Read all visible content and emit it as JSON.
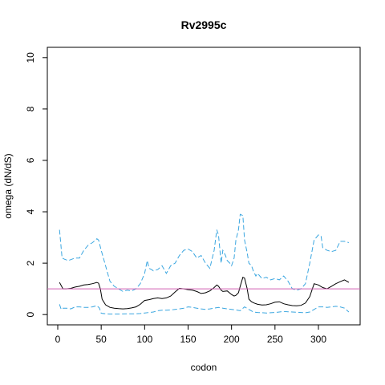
{
  "chart_data": {
    "type": "line",
    "title": "Rv2995c",
    "xlabel": "codon",
    "ylabel": "omega (dN/dS)",
    "xlim": [
      -12,
      348
    ],
    "ylim": [
      -0.4,
      10.4
    ],
    "xticks": [
      0,
      50,
      100,
      150,
      200,
      250,
      300
    ],
    "yticks": [
      0,
      2,
      4,
      6,
      8,
      10
    ],
    "grid": false,
    "reference_line": {
      "y": 1,
      "color": "#d05eb0"
    },
    "series": [
      {
        "role": "omega",
        "color": "#000000",
        "dash": "solid",
        "x": [
          2,
          6,
          10,
          15,
          20,
          25,
          30,
          35,
          40,
          45,
          47,
          49,
          51,
          55,
          60,
          65,
          70,
          75,
          80,
          85,
          90,
          95,
          100,
          105,
          110,
          115,
          120,
          125,
          130,
          135,
          140,
          145,
          150,
          155,
          160,
          165,
          170,
          175,
          180,
          183,
          185,
          188,
          190,
          195,
          200,
          203,
          205,
          208,
          210,
          213,
          215,
          218,
          220,
          223,
          226,
          230,
          235,
          240,
          245,
          250,
          255,
          260,
          265,
          270,
          275,
          280,
          285,
          290,
          295,
          300,
          305,
          310,
          315,
          320,
          325,
          330,
          335
        ],
        "y": [
          1.25,
          1.0,
          1.0,
          1.02,
          1.07,
          1.1,
          1.15,
          1.17,
          1.2,
          1.25,
          1.22,
          1.0,
          0.6,
          0.38,
          0.28,
          0.25,
          0.23,
          0.22,
          0.23,
          0.26,
          0.3,
          0.4,
          0.55,
          0.58,
          0.62,
          0.65,
          0.62,
          0.65,
          0.72,
          0.88,
          1.02,
          1.0,
          0.97,
          0.95,
          0.9,
          0.82,
          0.85,
          0.92,
          1.05,
          1.15,
          1.1,
          0.95,
          0.9,
          0.92,
          0.78,
          0.72,
          0.75,
          0.85,
          1.1,
          1.45,
          1.42,
          1.0,
          0.6,
          0.5,
          0.45,
          0.4,
          0.37,
          0.38,
          0.42,
          0.48,
          0.5,
          0.42,
          0.38,
          0.35,
          0.34,
          0.36,
          0.45,
          0.7,
          1.2,
          1.15,
          1.05,
          1.0,
          1.1,
          1.2,
          1.28,
          1.35,
          1.25
        ]
      },
      {
        "role": "upper bound",
        "color": "#3aa6e0",
        "dash": "dashed",
        "x": [
          2,
          5,
          8,
          12,
          16,
          20,
          25,
          30,
          35,
          40,
          45,
          47,
          50,
          55,
          60,
          65,
          70,
          75,
          80,
          85,
          90,
          95,
          100,
          103,
          105,
          108,
          110,
          115,
          120,
          125,
          130,
          135,
          140,
          145,
          150,
          155,
          160,
          165,
          170,
          175,
          180,
          183,
          185,
          188,
          190,
          193,
          195,
          198,
          200,
          203,
          205,
          208,
          210,
          213,
          215,
          218,
          220,
          223,
          225,
          228,
          230,
          235,
          240,
          245,
          250,
          255,
          260,
          265,
          270,
          275,
          280,
          285,
          290,
          295,
          300,
          303,
          305,
          310,
          315,
          320,
          325,
          330,
          335
        ],
        "y": [
          3.3,
          2.2,
          2.15,
          2.1,
          2.15,
          2.2,
          2.2,
          2.5,
          2.7,
          2.8,
          2.95,
          2.9,
          2.5,
          1.9,
          1.3,
          1.1,
          1.0,
          0.9,
          0.95,
          0.92,
          1.0,
          1.2,
          1.6,
          2.1,
          1.8,
          1.75,
          1.7,
          1.75,
          1.9,
          1.6,
          1.9,
          2.0,
          2.3,
          2.5,
          2.55,
          2.45,
          2.2,
          2.3,
          2.0,
          1.8,
          2.5,
          3.3,
          3.1,
          2.0,
          2.5,
          2.3,
          2.1,
          2.0,
          1.9,
          2.2,
          2.9,
          3.3,
          3.9,
          3.85,
          2.9,
          2.4,
          2.0,
          1.9,
          1.7,
          1.5,
          1.6,
          1.4,
          1.45,
          1.35,
          1.4,
          1.35,
          1.5,
          1.3,
          1.0,
          0.95,
          1.0,
          1.2,
          2.0,
          2.9,
          3.1,
          3.05,
          2.6,
          2.5,
          2.45,
          2.5,
          2.85,
          2.85,
          2.8
        ]
      },
      {
        "role": "lower bound",
        "color": "#3aa6e0",
        "dash": "dashed",
        "x": [
          2,
          4,
          6,
          10,
          15,
          20,
          25,
          30,
          35,
          40,
          45,
          48,
          50,
          55,
          60,
          70,
          80,
          90,
          95,
          100,
          105,
          110,
          115,
          120,
          125,
          130,
          135,
          140,
          145,
          150,
          155,
          160,
          165,
          170,
          175,
          180,
          185,
          190,
          195,
          200,
          205,
          210,
          215,
          220,
          225,
          230,
          235,
          240,
          245,
          250,
          255,
          260,
          265,
          270,
          275,
          280,
          285,
          290,
          295,
          300,
          305,
          310,
          315,
          320,
          325,
          330,
          335
        ],
        "y": [
          0.4,
          0.2,
          0.25,
          0.25,
          0.22,
          0.3,
          0.3,
          0.28,
          0.28,
          0.3,
          0.35,
          0.25,
          0.05,
          0.03,
          0.02,
          0.02,
          0.03,
          0.03,
          0.04,
          0.06,
          0.08,
          0.1,
          0.15,
          0.17,
          0.17,
          0.18,
          0.2,
          0.22,
          0.25,
          0.3,
          0.28,
          0.25,
          0.22,
          0.2,
          0.22,
          0.25,
          0.28,
          0.25,
          0.22,
          0.2,
          0.18,
          0.15,
          0.3,
          0.2,
          0.1,
          0.08,
          0.07,
          0.06,
          0.07,
          0.08,
          0.1,
          0.12,
          0.11,
          0.1,
          0.09,
          0.08,
          0.07,
          0.1,
          0.2,
          0.3,
          0.3,
          0.28,
          0.3,
          0.32,
          0.3,
          0.25,
          0.1
        ]
      }
    ]
  }
}
